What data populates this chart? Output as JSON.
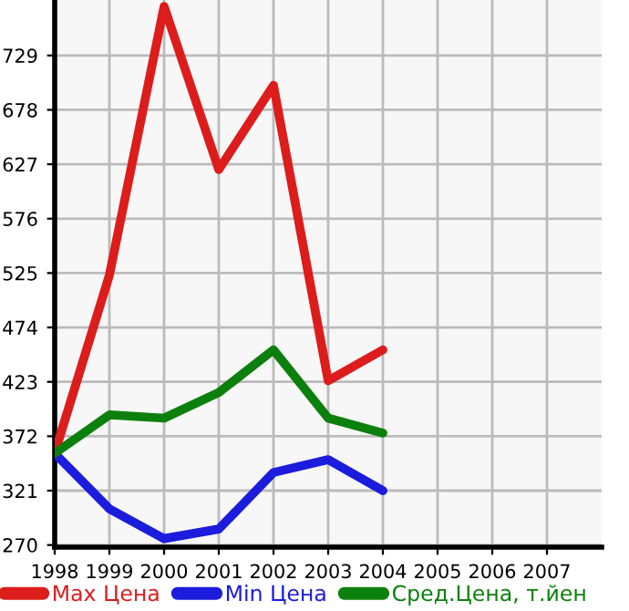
{
  "chart_data": {
    "type": "line",
    "x": [
      1998,
      1999,
      2000,
      2001,
      2002,
      2003,
      2004
    ],
    "series": [
      {
        "name": "Max Цена",
        "color": "#dd1c1c",
        "values": [
          356,
          523,
          775,
          622,
          701,
          424,
          453
        ]
      },
      {
        "name": "Min Цена",
        "color": "#1c1cdd",
        "values": [
          356,
          304,
          276,
          285,
          338,
          350,
          321
        ]
      },
      {
        "name": "Сред.Цена, т.йен",
        "color": "#0c800c",
        "values": [
          356,
          392,
          389,
          413,
          453,
          389,
          375
        ]
      }
    ],
    "xlim": [
      1998,
      2008
    ],
    "xticks": [
      1998,
      1999,
      2000,
      2001,
      2002,
      2003,
      2004,
      2005,
      2006,
      2007
    ],
    "ylim": [
      268,
      781
    ],
    "yticks": [
      270,
      321,
      372,
      423,
      474,
      525,
      576,
      627,
      678,
      729
    ],
    "grid": true,
    "legend": "bottom",
    "marker": "none",
    "line_style": "solid"
  }
}
